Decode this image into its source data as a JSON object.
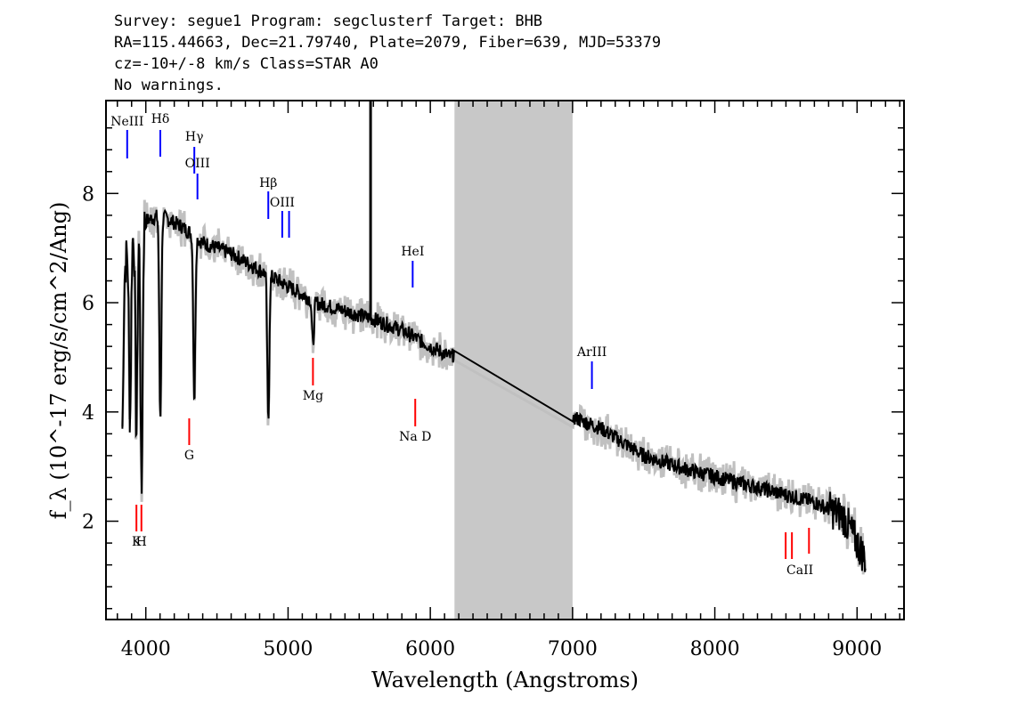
{
  "header": {
    "line1": "Survey: segue1 Program: segclusterf Target: BHB",
    "line2": "RA=115.44663, Dec=21.79740, Plate=2079, Fiber=639, MJD=53379",
    "line3": "cz=-10+/-8 km/s Class=STAR A0",
    "line4": "No warnings."
  },
  "chart_data": {
    "type": "line",
    "xlabel": "Wavelength (Angstroms)",
    "ylabel": "f_λ (10^-17 erg/s/cm^2/Ang)",
    "xlim": [
      3720,
      9330
    ],
    "ylim": [
      0.2,
      9.7
    ],
    "x_ticks": [
      4000,
      5000,
      6000,
      7000,
      8000,
      9000
    ],
    "y_ticks": [
      2,
      4,
      6,
      8
    ],
    "masked_region": [
      6170,
      7000
    ],
    "spike_x": 5580,
    "colors": {
      "spectrum": "#000000",
      "error": "#c0c0c0",
      "emission": "#0000ff",
      "absorption": "#ff0000",
      "mask": "#c8c8c8"
    },
    "continuum": [
      {
        "x": 3835,
        "y": 6.5
      },
      {
        "x": 3900,
        "y": 7.2
      },
      {
        "x": 4000,
        "y": 7.5
      },
      {
        "x": 4100,
        "y": 7.6
      },
      {
        "x": 4250,
        "y": 7.4
      },
      {
        "x": 4400,
        "y": 7.1
      },
      {
        "x": 4600,
        "y": 6.9
      },
      {
        "x": 4800,
        "y": 6.6
      },
      {
        "x": 5000,
        "y": 6.3
      },
      {
        "x": 5200,
        "y": 6.0
      },
      {
        "x": 5400,
        "y": 5.85
      },
      {
        "x": 5600,
        "y": 5.7
      },
      {
        "x": 5800,
        "y": 5.5
      },
      {
        "x": 6000,
        "y": 5.2
      },
      {
        "x": 6150,
        "y": 5.0
      },
      {
        "x": 6170,
        "y": 5.1
      },
      {
        "x": 7000,
        "y": 3.6
      },
      {
        "x": 7010,
        "y": 3.9
      },
      {
        "x": 7200,
        "y": 3.7
      },
      {
        "x": 7500,
        "y": 3.2
      },
      {
        "x": 7800,
        "y": 2.95
      },
      {
        "x": 8100,
        "y": 2.75
      },
      {
        "x": 8400,
        "y": 2.55
      },
      {
        "x": 8700,
        "y": 2.35
      },
      {
        "x": 8900,
        "y": 2.1
      },
      {
        "x": 9060,
        "y": 1.3
      }
    ],
    "absorption_dips": [
      {
        "x": 3835,
        "y": 3.7
      },
      {
        "x": 3889,
        "y": 3.9
      },
      {
        "x": 3934,
        "y": 3.6
      },
      {
        "x": 3970,
        "y": 2.5
      },
      {
        "x": 4102,
        "y": 3.9
      },
      {
        "x": 4341,
        "y": 4.2
      },
      {
        "x": 4861,
        "y": 3.8
      },
      {
        "x": 5175,
        "y": 5.2
      }
    ],
    "emission_lines": [
      {
        "label": "NeIII",
        "x": 3869
      },
      {
        "label": "Hδ",
        "x": 4102
      },
      {
        "label": "Hγ",
        "x": 4341
      },
      {
        "label": "OIII",
        "x": 4363
      },
      {
        "label": "Hβ",
        "x": 4861
      },
      {
        "label": "OIII",
        "x": 4959
      },
      {
        "label": "",
        "x": 5007
      },
      {
        "label": "HeI",
        "x": 5876
      },
      {
        "label": "ArIII",
        "x": 7136
      }
    ],
    "absorption_lines": [
      {
        "label": "K",
        "x": 3934
      },
      {
        "label": "H",
        "x": 3969
      },
      {
        "label": "G",
        "x": 4305
      },
      {
        "label": "Mg",
        "x": 5175
      },
      {
        "label": "Na D",
        "x": 5894
      },
      {
        "label": "CaII",
        "x": 8498
      },
      {
        "label": "",
        "x": 8542
      },
      {
        "label": "",
        "x": 8662
      }
    ]
  }
}
